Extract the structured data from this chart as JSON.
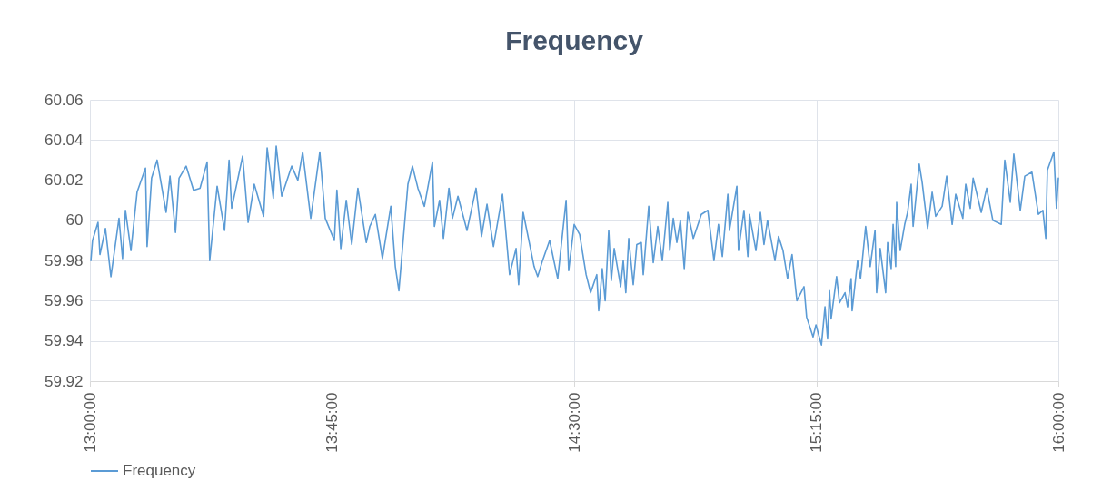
{
  "chart_data": {
    "type": "line",
    "title": "Frequency",
    "xlim": [
      13,
      16
    ],
    "xticks": [
      {
        "value": 13,
        "label": "13:00:00"
      },
      {
        "value": 13.75,
        "label": "13:45:00"
      },
      {
        "value": 14.5,
        "label": "14:30:00"
      },
      {
        "value": 15.25,
        "label": "15:15:00"
      },
      {
        "value": 16,
        "label": "16:00:00"
      }
    ],
    "ylim": [
      59.92,
      60.06
    ],
    "yticks": [
      59.92,
      59.94,
      59.96,
      59.98,
      60,
      60.02,
      60.04,
      60.06
    ],
    "grid": true,
    "legend": "bottom",
    "line_style": "solid",
    "marker": "none",
    "x": [
      13.003,
      13.008,
      13.025,
      13.031,
      13.048,
      13.065,
      13.09,
      13.101,
      13.11,
      13.127,
      13.146,
      13.172,
      13.177,
      13.191,
      13.208,
      13.236,
      13.248,
      13.265,
      13.276,
      13.298,
      13.321,
      13.341,
      13.363,
      13.371,
      13.394,
      13.417,
      13.431,
      13.439,
      13.473,
      13.49,
      13.509,
      13.538,
      13.549,
      13.568,
      13.577,
      13.594,
      13.625,
      13.644,
      13.659,
      13.684,
      13.712,
      13.729,
      13.757,
      13.765,
      13.777,
      13.794,
      13.811,
      13.83,
      13.856,
      13.867,
      13.884,
      13.906,
      13.932,
      13.946,
      13.957,
      13.985,
      13.999,
      14.016,
      14.036,
      14.061,
      14.067,
      14.083,
      14.095,
      14.112,
      14.123,
      14.14,
      14.168,
      14.196,
      14.213,
      14.23,
      14.25,
      14.278,
      14.3,
      14.32,
      14.328,
      14.342,
      14.376,
      14.387,
      14.402,
      14.424,
      14.449,
      14.475,
      14.483,
      14.5,
      14.517,
      14.537,
      14.551,
      14.57,
      14.576,
      14.587,
      14.596,
      14.607,
      14.615,
      14.624,
      14.644,
      14.652,
      14.66,
      14.669,
      14.683,
      14.694,
      14.708,
      14.714,
      14.731,
      14.745,
      14.759,
      14.773,
      14.79,
      14.796,
      14.807,
      14.818,
      14.829,
      14.841,
      14.852,
      14.869,
      14.894,
      14.914,
      14.933,
      14.947,
      14.959,
      14.976,
      14.981,
      15.004,
      15.009,
      15.026,
      15.038,
      15.043,
      15.063,
      15.077,
      15.088,
      15.099,
      15.122,
      15.133,
      15.147,
      15.161,
      15.175,
      15.19,
      15.212,
      15.22,
      15.24,
      15.249,
      15.266,
      15.277,
      15.285,
      15.291,
      15.296,
      15.313,
      15.322,
      15.339,
      15.347,
      15.358,
      15.361,
      15.378,
      15.387,
      15.403,
      15.417,
      15.432,
      15.437,
      15.448,
      15.465,
      15.471,
      15.482,
      15.488,
      15.496,
      15.499,
      15.51,
      15.524,
      15.533,
      15.544,
      15.55,
      15.569,
      15.578,
      15.595,
      15.609,
      15.62,
      15.64,
      15.654,
      15.671,
      15.682,
      15.704,
      15.713,
      15.727,
      15.736,
      15.761,
      15.778,
      15.797,
      15.823,
      15.834,
      15.851,
      15.862,
      15.882,
      15.896,
      15.918,
      15.938,
      15.952,
      15.961,
      15.966,
      15.986,
      15.994,
      16.0
    ],
    "series": [
      {
        "name": "Frequency",
        "color": "#5b9bd5",
        "values": [
          59.98,
          59.99,
          59.999,
          59.983,
          59.996,
          59.972,
          60.001,
          59.981,
          60.005,
          59.985,
          60.014,
          60.026,
          59.987,
          60.021,
          60.03,
          60.004,
          60.022,
          59.994,
          60.021,
          60.027,
          60.015,
          60.016,
          60.029,
          59.98,
          60.017,
          59.995,
          60.03,
          60.006,
          60.032,
          59.999,
          60.018,
          60.002,
          60.036,
          60.011,
          60.037,
          60.012,
          60.027,
          60.02,
          60.034,
          60.001,
          60.034,
          60.001,
          59.99,
          60.015,
          59.986,
          60.01,
          59.988,
          60.016,
          59.989,
          59.997,
          60.003,
          59.981,
          60.007,
          59.977,
          59.965,
          60.018,
          60.027,
          60.016,
          60.007,
          60.029,
          59.997,
          60.01,
          59.991,
          60.016,
          60.001,
          60.012,
          59.995,
          60.016,
          59.992,
          60.008,
          59.987,
          60.013,
          59.973,
          59.986,
          59.968,
          60.004,
          59.977,
          59.972,
          59.98,
          59.99,
          59.971,
          60.01,
          59.975,
          59.998,
          59.993,
          59.973,
          59.964,
          59.973,
          59.955,
          59.976,
          59.96,
          59.995,
          59.97,
          59.986,
          59.967,
          59.98,
          59.964,
          59.991,
          59.968,
          59.988,
          59.989,
          59.973,
          60.007,
          59.979,
          59.997,
          59.98,
          60.009,
          59.985,
          60.001,
          59.989,
          60.0,
          59.976,
          60.004,
          59.991,
          60.003,
          60.005,
          59.98,
          59.998,
          59.982,
          60.013,
          59.995,
          60.017,
          59.985,
          60.005,
          59.982,
          60.003,
          59.985,
          60.004,
          59.988,
          60.0,
          59.98,
          59.992,
          59.985,
          59.971,
          59.983,
          59.96,
          59.967,
          59.952,
          59.942,
          59.948,
          59.938,
          59.957,
          59.941,
          59.965,
          59.951,
          59.972,
          59.959,
          59.964,
          59.957,
          59.971,
          59.955,
          59.98,
          59.971,
          59.997,
          59.977,
          59.995,
          59.964,
          59.986,
          59.964,
          59.989,
          59.976,
          59.998,
          59.977,
          60.009,
          59.985,
          59.998,
          60.004,
          60.018,
          59.997,
          60.028,
          60.019,
          59.996,
          60.014,
          60.002,
          60.007,
          60.022,
          59.998,
          60.013,
          60.001,
          60.018,
          60.006,
          60.021,
          60.004,
          60.016,
          60.0,
          59.998,
          60.03,
          60.009,
          60.033,
          60.005,
          60.022,
          60.024,
          60.003,
          60.005,
          59.991,
          60.025,
          60.034,
          60.006,
          60.021
        ]
      }
    ]
  }
}
